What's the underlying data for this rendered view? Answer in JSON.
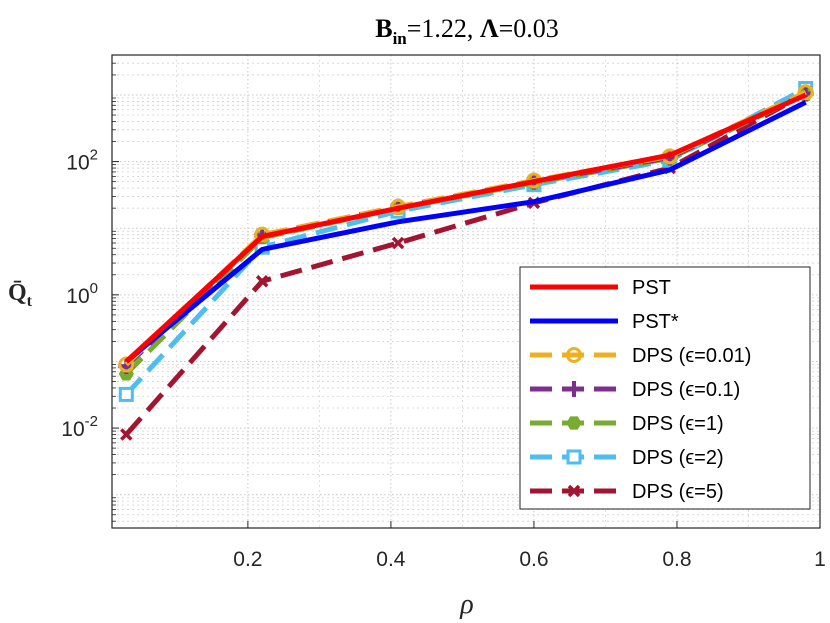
{
  "chart_data": {
    "type": "line",
    "title": "B_in=1.22, Λ=0.03",
    "title_parts": {
      "b": "B",
      "b_sub": "in",
      "b_val": "=1.22, ",
      "lambda": "Λ",
      "lambda_val": "=0.03"
    },
    "xlabel": "ρ",
    "ylabel": "Q̄t",
    "ylabel_parts": {
      "q": "Q̄",
      "sub": "t"
    },
    "xlim": [
      0.01,
      1.0
    ],
    "ylim_log10": [
      -3.5,
      3.6
    ],
    "yscale": "log",
    "grid": true,
    "minor_grid": true,
    "legend_position": "lower-right",
    "x_ticks": [
      {
        "value": 0.2,
        "label": "0.2"
      },
      {
        "value": 0.4,
        "label": "0.4"
      },
      {
        "value": 0.6,
        "label": "0.6"
      },
      {
        "value": 0.8,
        "label": "0.8"
      },
      {
        "value": 1.0,
        "label": "1"
      }
    ],
    "y_ticks": [
      {
        "exp": -2,
        "base": "10",
        "sup": "-2"
      },
      {
        "exp": 0,
        "base": "10",
        "sup": "0"
      },
      {
        "exp": 2,
        "base": "10",
        "sup": "2"
      }
    ],
    "x": [
      0.03,
      0.22,
      0.41,
      0.6,
      0.79,
      0.98
    ],
    "series": [
      {
        "name": "PST",
        "label": "PST",
        "color": "#ff0000",
        "dash": "solid",
        "marker": "none",
        "values": [
          0.1,
          7.5,
          20,
          50,
          125,
          1000
        ]
      },
      {
        "name": "PST*",
        "label": "PST*",
        "color": "#0000ff",
        "dash": "solid",
        "marker": "none",
        "values": [
          0.1,
          4.8,
          12.5,
          25,
          75,
          780
        ]
      },
      {
        "name": "DPS (ε=0.01)",
        "label": "DPS (ϵ=0.01)",
        "color": "#edb120",
        "dash": "dash",
        "marker": "circle",
        "values": [
          0.09,
          8.0,
          21,
          52,
          120,
          1100
        ]
      },
      {
        "name": "DPS (ε=0.1)",
        "label": "DPS (ϵ=0.1)",
        "color": "#7e2f8e",
        "dash": "dash",
        "marker": "plus",
        "values": [
          0.085,
          7.8,
          21,
          50,
          115,
          1050
        ]
      },
      {
        "name": "DPS (ε=1)",
        "label": "DPS (ϵ=1)",
        "color": "#77ac30",
        "dash": "dash",
        "marker": "hexagon",
        "values": [
          0.065,
          7.2,
          20,
          48,
          112,
          1020
        ]
      },
      {
        "name": "DPS (ε=2)",
        "label": "DPS (ϵ=2)",
        "color": "#4dbeee",
        "dash": "dash",
        "marker": "square",
        "values": [
          0.032,
          5.2,
          18,
          45,
          105,
          1250
        ]
      },
      {
        "name": "DPS (ε=5)",
        "label": "DPS (ϵ=5)",
        "color": "#a2142f",
        "dash": "dash",
        "marker": "x",
        "values": [
          0.008,
          1.6,
          6.0,
          24,
          80,
          1050
        ]
      }
    ]
  }
}
